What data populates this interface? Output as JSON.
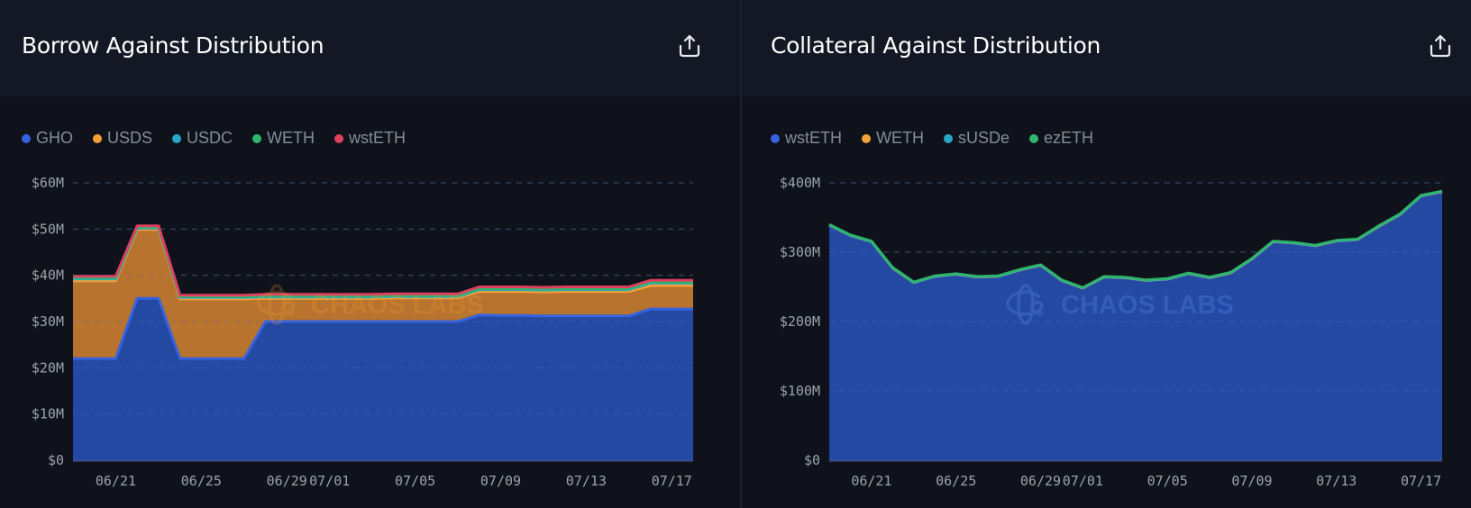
{
  "panels": [
    {
      "title": "Borrow Against Distribution",
      "export_icon": "share-upload-icon",
      "legend": [
        {
          "label": "GHO",
          "color": "#3563e0"
        },
        {
          "label": "USDS",
          "color": "#f7a035"
        },
        {
          "label": "USDC",
          "color": "#28a8c8"
        },
        {
          "label": "WETH",
          "color": "#2eb56e"
        },
        {
          "label": "wstETH",
          "color": "#e0405f"
        }
      ],
      "watermark": "CHAOS LABS"
    },
    {
      "title": "Collateral Against Distribution",
      "export_icon": "share-upload-icon",
      "legend": [
        {
          "label": "wstETH",
          "color": "#3563e0"
        },
        {
          "label": "WETH",
          "color": "#f7a035"
        },
        {
          "label": "sUSDe",
          "color": "#28a8c8"
        },
        {
          "label": "ezETH",
          "color": "#2eb56e"
        }
      ],
      "watermark": "CHAOS LABS"
    }
  ],
  "chart_data": [
    {
      "type": "area",
      "stacked": true,
      "title": "Borrow Against Distribution",
      "xlabel": "",
      "ylabel": "",
      "x": [
        "06/19",
        "06/20",
        "06/21",
        "06/22",
        "06/23",
        "06/24",
        "06/25",
        "06/26",
        "06/27",
        "06/28",
        "06/29",
        "06/30",
        "07/01",
        "07/02",
        "07/03",
        "07/04",
        "07/05",
        "07/06",
        "07/07",
        "07/08",
        "07/09",
        "07/10",
        "07/11",
        "07/12",
        "07/13",
        "07/14",
        "07/15",
        "07/16",
        "07/17",
        "07/18"
      ],
      "x_ticks": [
        "06/21",
        "06/25",
        "06/29",
        "07/01",
        "07/05",
        "07/09",
        "07/13",
        "07/17"
      ],
      "y_ticks": [
        "$0",
        "$10M",
        "$20M",
        "$30M",
        "$40M",
        "$50M",
        "$60M"
      ],
      "ylim": [
        0,
        60
      ],
      "y_unit": "M USD",
      "grid": "horizontal-dashed",
      "legend_position": "top-left",
      "series": [
        {
          "name": "GHO",
          "color": "#3563e0",
          "values": [
            22,
            22,
            22,
            35,
            35,
            22,
            22,
            22,
            22,
            30,
            30,
            30,
            30,
            30,
            30,
            30,
            30,
            30,
            30,
            31.4,
            31.3,
            31.3,
            31.2,
            31.2,
            31.2,
            31.2,
            31.2,
            32.7,
            32.7,
            32.7
          ]
        },
        {
          "name": "USDS",
          "color": "#f7a035",
          "values": [
            16.8,
            16.8,
            16.8,
            14.9,
            14.9,
            12.9,
            12.9,
            12.9,
            12.9,
            5.0,
            5.0,
            5.0,
            5.0,
            5.0,
            5.0,
            5.1,
            5.1,
            5.1,
            5.1,
            5.1,
            5.2,
            5.2,
            5.2,
            5.3,
            5.3,
            5.3,
            5.3,
            5.1,
            5.1,
            5.1
          ]
        },
        {
          "name": "USDC",
          "color": "#28a8c8",
          "values": [
            0.4,
            0.4,
            0.4,
            0.3,
            0.3,
            0.3,
            0.3,
            0.3,
            0.3,
            0.3,
            0.3,
            0.3,
            0.3,
            0.3,
            0.3,
            0.3,
            0.3,
            0.3,
            0.3,
            0.4,
            0.4,
            0.4,
            0.4,
            0.4,
            0.4,
            0.4,
            0.4,
            0.5,
            0.5,
            0.5
          ]
        },
        {
          "name": "WETH",
          "color": "#2eb56e",
          "values": [
            0.2,
            0.2,
            0.2,
            0.2,
            0.2,
            0.2,
            0.2,
            0.2,
            0.2,
            0.2,
            0.2,
            0.2,
            0.2,
            0.2,
            0.2,
            0.2,
            0.2,
            0.2,
            0.2,
            0.2,
            0.2,
            0.2,
            0.2,
            0.2,
            0.2,
            0.2,
            0.2,
            0.2,
            0.2,
            0.2
          ]
        },
        {
          "name": "wstETH",
          "color": "#e0405f",
          "values": [
            0.4,
            0.4,
            0.4,
            0.3,
            0.3,
            0.3,
            0.3,
            0.3,
            0.3,
            0.4,
            0.4,
            0.4,
            0.4,
            0.4,
            0.4,
            0.4,
            0.4,
            0.4,
            0.4,
            0.4,
            0.4,
            0.4,
            0.4,
            0.4,
            0.4,
            0.4,
            0.4,
            0.4,
            0.4,
            0.4
          ]
        }
      ]
    },
    {
      "type": "area",
      "stacked": true,
      "title": "Collateral Against Distribution",
      "xlabel": "",
      "ylabel": "",
      "x": [
        "06/19",
        "06/20",
        "06/21",
        "06/22",
        "06/23",
        "06/24",
        "06/25",
        "06/26",
        "06/27",
        "06/28",
        "06/29",
        "06/30",
        "07/01",
        "07/02",
        "07/03",
        "07/04",
        "07/05",
        "07/06",
        "07/07",
        "07/08",
        "07/09",
        "07/10",
        "07/11",
        "07/12",
        "07/13",
        "07/14",
        "07/15",
        "07/16",
        "07/17",
        "07/18"
      ],
      "x_ticks": [
        "06/21",
        "06/25",
        "06/29",
        "07/01",
        "07/05",
        "07/09",
        "07/13",
        "07/17"
      ],
      "y_ticks": [
        "$0",
        "$100M",
        "$200M",
        "$300M",
        "$400M"
      ],
      "ylim": [
        0,
        400
      ],
      "y_unit": "M USD",
      "grid": "horizontal-dashed",
      "legend_position": "top-left",
      "series": [
        {
          "name": "wstETH",
          "color": "#3563e0",
          "values": [
            339,
            324,
            315,
            277,
            256,
            265,
            268,
            264,
            265,
            274,
            281,
            259,
            248,
            264,
            263,
            259,
            261,
            269,
            263,
            270,
            290,
            315,
            313,
            309,
            316,
            318,
            337,
            354,
            381,
            387
          ]
        },
        {
          "name": "WETH",
          "color": "#f7a035",
          "values": [
            0.3,
            0.3,
            0.3,
            0.3,
            0.3,
            0.3,
            0.3,
            0.3,
            0.3,
            0.3,
            0.3,
            0.3,
            0.3,
            0.3,
            0.3,
            0.3,
            0.3,
            0.3,
            0.3,
            0.3,
            0.3,
            0.3,
            0.3,
            0.3,
            0.3,
            0.3,
            0.3,
            0.3,
            0.3,
            0.3
          ]
        },
        {
          "name": "sUSDe",
          "color": "#28a8c8",
          "values": [
            0.3,
            0.3,
            0.3,
            0.3,
            0.3,
            0.3,
            0.3,
            0.3,
            0.3,
            0.3,
            0.3,
            0.3,
            0.3,
            0.3,
            0.3,
            0.3,
            0.3,
            0.3,
            0.3,
            0.3,
            0.3,
            0.3,
            0.3,
            0.3,
            0.3,
            0.3,
            0.3,
            0.3,
            0.3,
            0.3
          ]
        },
        {
          "name": "ezETH",
          "color": "#2eb56e",
          "values": [
            0.4,
            0.4,
            0.4,
            0.4,
            0.4,
            0.4,
            0.4,
            0.4,
            0.4,
            0.4,
            0.4,
            0.4,
            0.4,
            0.4,
            0.4,
            0.4,
            0.4,
            0.4,
            0.4,
            0.4,
            0.4,
            0.4,
            0.4,
            0.4,
            0.4,
            0.4,
            0.4,
            0.4,
            0.4,
            0.4
          ]
        }
      ]
    }
  ]
}
